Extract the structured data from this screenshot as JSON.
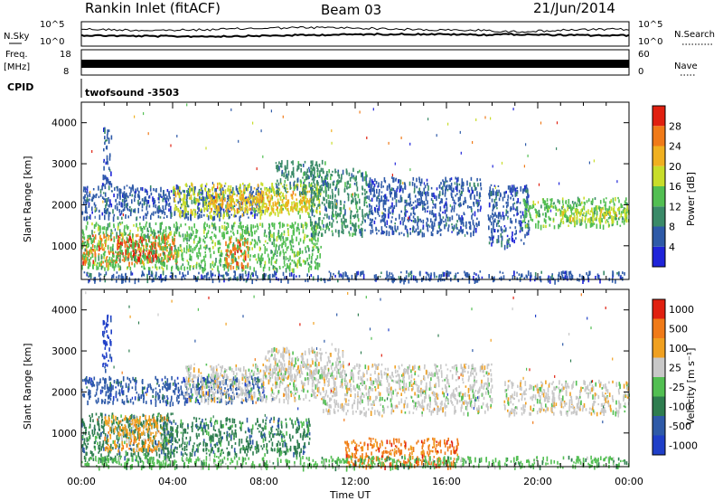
{
  "header": {
    "station": "Rankin Inlet (fitACF)",
    "beam": "Beam 03",
    "date": "21/Jun/2014"
  },
  "top_panels": {
    "nsky_label": "N.Sky",
    "nsearch_label": "N.Search",
    "freq_label_1": "Freq.",
    "freq_label_2": "[MHz]",
    "nave_label": "Nave",
    "cpid_label": "CPID",
    "cpid_value": "twofsound -3503",
    "noise_left_top": "10^5",
    "noise_left_bottom": "10^0",
    "noise_right_top": "10^5",
    "noise_right_bottom": "10^0",
    "freq_top": "18",
    "freq_bottom": "8",
    "nave_top": "60",
    "nave_bottom": "0"
  },
  "time_axis": {
    "label": "Time UT",
    "ticks": [
      "00:00",
      "04:00",
      "08:00",
      "12:00",
      "16:00",
      "20:00",
      "00:00"
    ]
  },
  "chart_data": [
    {
      "type": "heatmap",
      "name": "power",
      "ylabel": "Slant Range [km]",
      "yticks": [
        1000,
        2000,
        3000,
        4000
      ],
      "ylim": [
        180,
        4500
      ],
      "xlim_hours": [
        0,
        24
      ],
      "colorbar_label": "Power [dB]",
      "colorbar_ticks": [
        "4",
        "8",
        "12",
        "16",
        "20",
        "24",
        "28"
      ],
      "colors": [
        "#1f24d9",
        "#2e5aa8",
        "#3a8a68",
        "#52bf52",
        "#c8dd2a",
        "#f0b020",
        "#f07a18",
        "#e02010"
      ],
      "regions": [
        {
          "t": [
            0.0,
            4.3
          ],
          "r": [
            600,
            1300
          ],
          "level": 6
        },
        {
          "t": [
            1.5,
            3.3
          ],
          "r": [
            700,
            1250
          ],
          "level": 7
        },
        {
          "t": [
            0.0,
            10.5
          ],
          "r": [
            450,
            1600
          ],
          "level": 3
        },
        {
          "t": [
            0.0,
            8.0
          ],
          "r": [
            1700,
            2500
          ],
          "level": 1
        },
        {
          "t": [
            0.9,
            1.3
          ],
          "r": [
            2500,
            3900
          ],
          "level": 1
        },
        {
          "t": [
            4.0,
            10.5
          ],
          "r": [
            1750,
            2550
          ],
          "level": 4
        },
        {
          "t": [
            5.5,
            10.0
          ],
          "r": [
            1900,
            2350
          ],
          "level": 5
        },
        {
          "t": [
            6.3,
            7.3
          ],
          "r": [
            500,
            1200
          ],
          "level": 6
        },
        {
          "t": [
            8.5,
            10.8
          ],
          "r": [
            2300,
            3100
          ],
          "level": 2
        },
        {
          "t": [
            10.0,
            12.5
          ],
          "r": [
            1300,
            2900
          ],
          "level": 2
        },
        {
          "t": [
            12.5,
            17.5
          ],
          "r": [
            1300,
            2700
          ],
          "level": 1
        },
        {
          "t": [
            17.8,
            19.6
          ],
          "r": [
            1000,
            2500
          ],
          "level": 1
        },
        {
          "t": [
            19.3,
            24.0
          ],
          "r": [
            1500,
            2200
          ],
          "level": 3
        },
        {
          "t": [
            21.0,
            24.0
          ],
          "r": [
            1600,
            2000
          ],
          "level": 4
        },
        {
          "t": [
            0.0,
            24.0
          ],
          "r": [
            180,
            400
          ],
          "level": 1
        }
      ]
    },
    {
      "type": "heatmap",
      "name": "velocity",
      "ylabel": "Slant Range [km]",
      "yticks": [
        1000,
        2000,
        3000,
        4000
      ],
      "ylim": [
        180,
        4500
      ],
      "xlim_hours": [
        0,
        24
      ],
      "colorbar_label": "Velocity [m s⁻¹]",
      "colorbar_ticks": [
        "1000",
        "500",
        "100",
        "25",
        "-25",
        "-100",
        "-500",
        "-1000"
      ],
      "colors": [
        "#1f3fc8",
        "#2e5aa8",
        "#2e7d4f",
        "#52bf52",
        "#c8c8c8",
        "#f0a020",
        "#f07a18",
        "#e02010"
      ],
      "regions": [
        {
          "t": [
            0.0,
            4.0
          ],
          "r": [
            350,
            1500
          ],
          "level": 2
        },
        {
          "t": [
            1.0,
            3.8
          ],
          "r": [
            600,
            1450
          ],
          "level": 5
        },
        {
          "t": [
            3.5,
            10.0
          ],
          "r": [
            500,
            1400
          ],
          "level": 2
        },
        {
          "t": [
            0.0,
            8.0
          ],
          "r": [
            1750,
            2400
          ],
          "level": 1
        },
        {
          "t": [
            0.9,
            1.3
          ],
          "r": [
            2500,
            3900
          ],
          "level": 0
        },
        {
          "t": [
            4.5,
            10.5
          ],
          "r": [
            1800,
            2700
          ],
          "level": 4
        },
        {
          "t": [
            8.0,
            11.5
          ],
          "r": [
            2400,
            3100
          ],
          "level": 4
        },
        {
          "t": [
            10.5,
            18.0
          ],
          "r": [
            1500,
            2700
          ],
          "level": 4
        },
        {
          "t": [
            18.5,
            24.0
          ],
          "r": [
            1500,
            2300
          ],
          "level": 4
        },
        {
          "t": [
            11.5,
            16.5
          ],
          "r": [
            200,
            900
          ],
          "level": 6
        },
        {
          "t": [
            0.0,
            24.0
          ],
          "r": [
            180,
            450
          ],
          "level": 3
        }
      ]
    }
  ]
}
